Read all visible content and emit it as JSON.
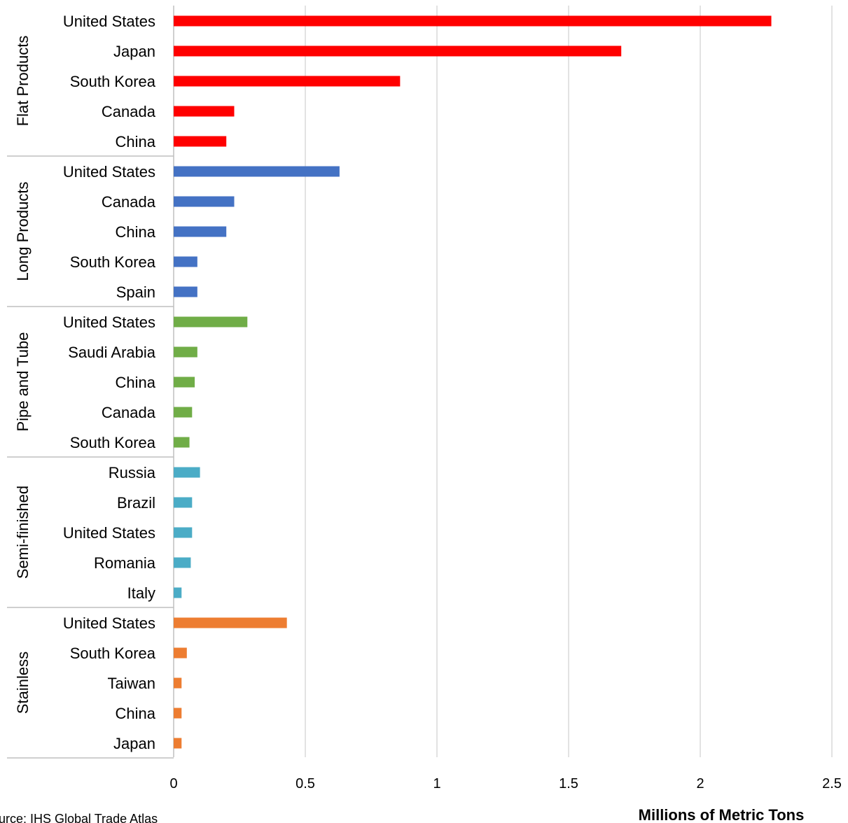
{
  "chart_data": {
    "type": "bar",
    "orientation": "horizontal",
    "xlabel": "Millions of Metric Tons",
    "xlim": [
      0,
      2.5
    ],
    "xticks": [
      0,
      0.5,
      1,
      1.5,
      2,
      2.5
    ],
    "xtick_labels": [
      "0",
      "0.5",
      "1",
      "1.5",
      "2",
      "2.5"
    ],
    "grid": "vertical",
    "groups": [
      {
        "name": "Flat Products",
        "color": "#ff0000",
        "categories": [
          "United States",
          "Japan",
          "South Korea",
          "Canada",
          "China"
        ],
        "values": [
          2.27,
          1.7,
          0.86,
          0.23,
          0.2
        ]
      },
      {
        "name": "Long Products",
        "color": "#4472c4",
        "categories": [
          "United States",
          "Canada",
          "China",
          "South Korea",
          "Spain"
        ],
        "values": [
          0.63,
          0.23,
          0.2,
          0.09,
          0.09
        ]
      },
      {
        "name": "Pipe and Tube",
        "color": "#70ad47",
        "categories": [
          "United States",
          "Saudi Arabia",
          "China",
          "Canada",
          "South Korea"
        ],
        "values": [
          0.28,
          0.09,
          0.08,
          0.07,
          0.06
        ]
      },
      {
        "name": "Semi-finished",
        "color": "#4bacc6",
        "categories": [
          "Russia",
          "Brazil",
          "United States",
          "Romania",
          "Italy"
        ],
        "values": [
          0.1,
          0.07,
          0.07,
          0.065,
          0.03
        ]
      },
      {
        "name": "Stainless",
        "color": "#ed7d31",
        "categories": [
          "United States",
          "South Korea",
          "Taiwan",
          "China",
          "Japan"
        ],
        "values": [
          0.43,
          0.05,
          0.03,
          0.03,
          0.03
        ]
      }
    ]
  },
  "source": "urce: IHS Global Trade Atlas"
}
